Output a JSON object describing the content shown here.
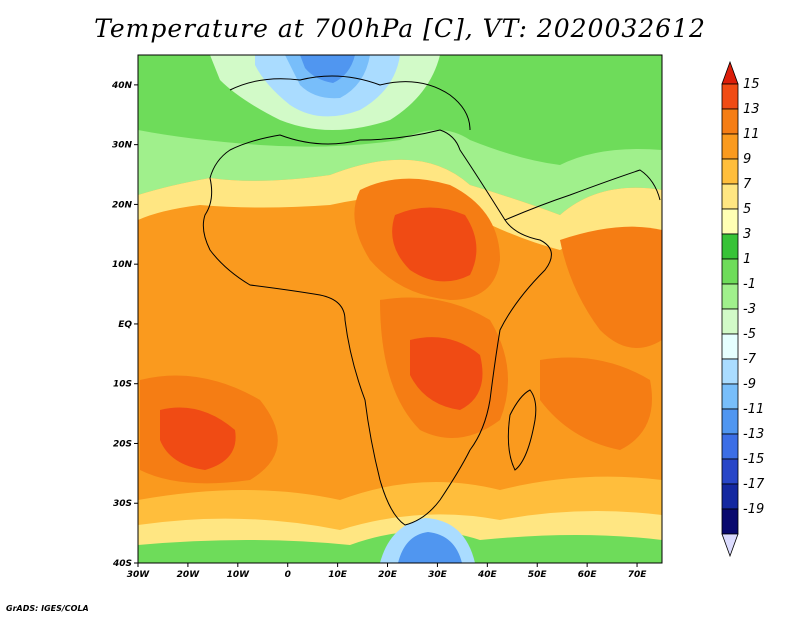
{
  "title": "Temperature at 700hPa [C], VT: 2020032612",
  "credit": "GrADS: IGES/COLA",
  "map": {
    "region": "Africa",
    "lon_range": [
      -30,
      75
    ],
    "lat_range": [
      -40,
      45
    ],
    "lon_ticks": [
      "30W",
      "20W",
      "10W",
      "0",
      "10E",
      "20E",
      "30E",
      "40E",
      "50E",
      "60E",
      "70E"
    ],
    "lat_ticks": [
      "40N",
      "30N",
      "20N",
      "10N",
      "EQ",
      "10S",
      "20S",
      "30S",
      "40S"
    ]
  },
  "colorbar": {
    "labels": [
      "15",
      "13",
      "11",
      "9",
      "7",
      "5",
      "3",
      "1",
      "-1",
      "-3",
      "-5",
      "-7",
      "-9",
      "-11",
      "-13",
      "-15",
      "-17",
      "-19"
    ],
    "colors": [
      "#dc1e0a",
      "#f04b14",
      "#f57d14",
      "#fa9a1e",
      "#ffbe3c",
      "#ffe682",
      "#ffffb4",
      "#37c337",
      "#6edc5a",
      "#a0f08c",
      "#d2fac8",
      "#e6ffff",
      "#aadcff",
      "#78befa",
      "#5096f0",
      "#3c6ee6",
      "#2846c8",
      "#1428a0",
      "#0a0a6e",
      "#dcdcff"
    ]
  }
}
